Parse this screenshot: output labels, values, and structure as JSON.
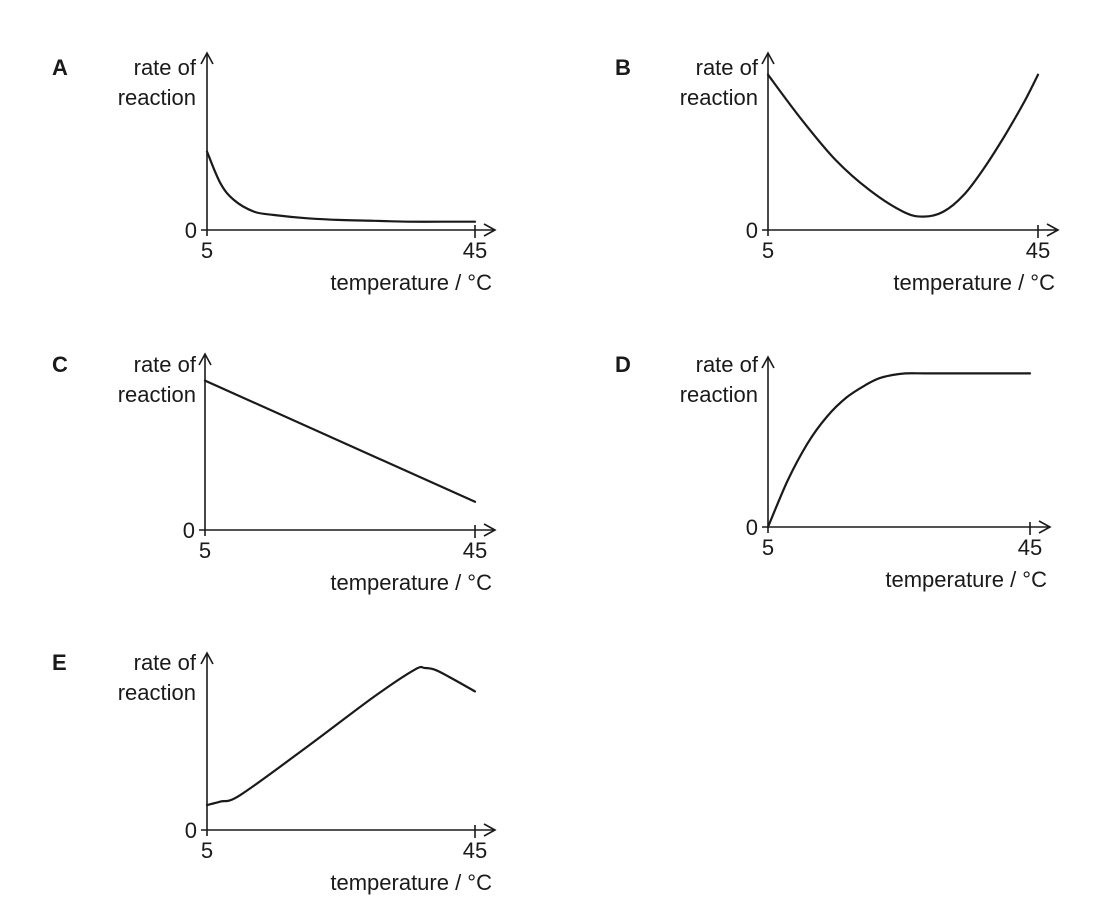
{
  "chart_data": [
    {
      "type": "line",
      "panel_label": "A",
      "ylabel": [
        "rate of",
        "reaction"
      ],
      "xlabel": "temperature / °C",
      "y_tick": "0",
      "x_ticks": [
        "5",
        "45"
      ],
      "xlim": [
        5,
        45
      ],
      "ylim": [
        0,
        1
      ],
      "series": [
        {
          "x": [
            5,
            7,
            9,
            12,
            15,
            20,
            25,
            30,
            35,
            40,
            45
          ],
          "y": [
            0.47,
            0.28,
            0.18,
            0.11,
            0.09,
            0.07,
            0.06,
            0.055,
            0.05,
            0.05,
            0.05
          ]
        }
      ]
    },
    {
      "type": "line",
      "panel_label": "B",
      "ylabel": [
        "rate of",
        "reaction"
      ],
      "xlabel": "temperature / °C",
      "y_tick": "0",
      "x_ticks": [
        "5",
        "45"
      ],
      "xlim": [
        5,
        45
      ],
      "ylim": [
        0,
        1
      ],
      "series": [
        {
          "x": [
            5,
            10,
            15,
            20,
            25,
            28,
            31,
            34,
            37,
            40,
            43,
            45
          ],
          "y": [
            0.93,
            0.66,
            0.42,
            0.24,
            0.11,
            0.08,
            0.11,
            0.21,
            0.37,
            0.56,
            0.77,
            0.93
          ]
        }
      ]
    },
    {
      "type": "line",
      "panel_label": "C",
      "ylabel": [
        "rate of",
        "reaction"
      ],
      "xlabel": "temperature / °C",
      "y_tick": "0",
      "x_ticks": [
        "5",
        "45"
      ],
      "xlim": [
        5,
        45
      ],
      "ylim": [
        0,
        1
      ],
      "series": [
        {
          "x": [
            5,
            45
          ],
          "y": [
            0.9,
            0.17
          ]
        }
      ]
    },
    {
      "type": "line",
      "panel_label": "D",
      "ylabel": [
        "rate of",
        "reaction"
      ],
      "xlabel": "temperature / °C",
      "y_tick": "0",
      "x_ticks": [
        "5",
        "45"
      ],
      "xlim": [
        5,
        45
      ],
      "ylim": [
        0,
        1
      ],
      "series": [
        {
          "x": [
            5,
            8,
            11,
            14,
            17,
            20,
            22,
            24,
            26,
            29,
            33,
            37,
            41,
            45
          ],
          "y": [
            0,
            0.29,
            0.52,
            0.69,
            0.81,
            0.89,
            0.93,
            0.95,
            0.96,
            0.96,
            0.96,
            0.96,
            0.96,
            0.96
          ]
        }
      ]
    },
    {
      "type": "line",
      "panel_label": "E",
      "ylabel": [
        "rate of",
        "reaction"
      ],
      "xlabel": "temperature / °C",
      "y_tick": "0",
      "x_ticks": [
        "5",
        "45"
      ],
      "xlim": [
        5,
        45
      ],
      "ylim": [
        0,
        1
      ],
      "series": [
        {
          "x": [
            5,
            7,
            10,
            20,
            30,
            36,
            37.5,
            39,
            41,
            45
          ],
          "y": [
            0.15,
            0.17,
            0.21,
            0.5,
            0.8,
            0.96,
            0.97,
            0.96,
            0.92,
            0.83
          ]
        }
      ]
    }
  ]
}
